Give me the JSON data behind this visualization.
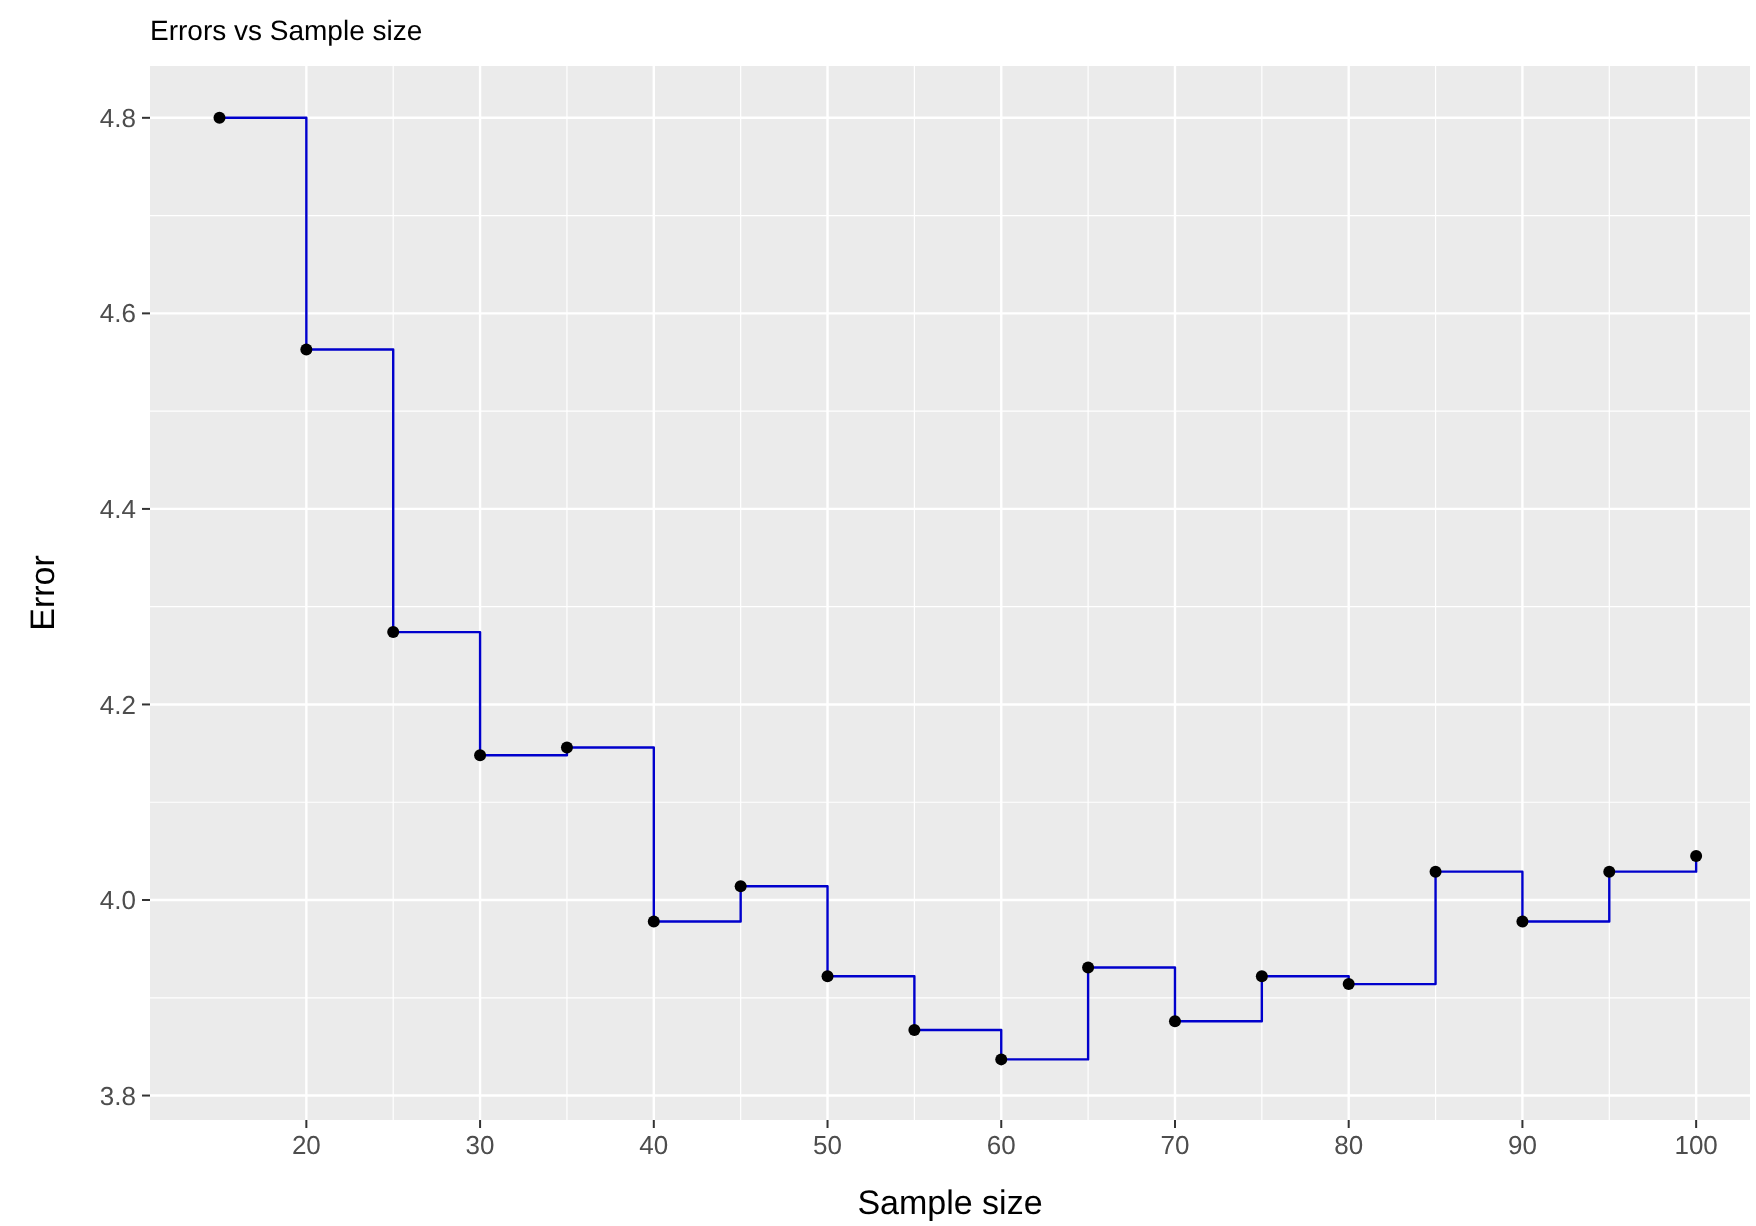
{
  "chart_data": {
    "type": "step",
    "title": "Errors vs Sample size",
    "xlabel": "Sample size",
    "ylabel": "Error",
    "x": [
      15,
      20,
      25,
      30,
      35,
      40,
      45,
      50,
      55,
      60,
      65,
      70,
      75,
      80,
      85,
      90,
      95,
      100
    ],
    "series": [
      {
        "color": "#0000cc",
        "values": [
          4.8,
          4.563,
          4.274,
          4.148,
          4.156,
          3.978,
          4.014,
          3.922,
          3.867,
          3.837,
          3.931,
          3.876,
          3.922,
          3.914,
          4.029,
          3.978,
          4.029,
          4.045
        ]
      }
    ],
    "xlim": [
      11,
      103.1
    ],
    "ylim": [
      3.775,
      4.853
    ],
    "xticks": [
      20,
      30,
      40,
      50,
      60,
      70,
      80,
      90,
      100
    ],
    "yticks": [
      {
        "value": 3.8,
        "label": "3.8"
      },
      {
        "value": 4.0,
        "label": "4.0"
      },
      {
        "value": 4.2,
        "label": "4.2"
      },
      {
        "value": 4.4,
        "label": "4.4"
      },
      {
        "value": 4.6,
        "label": "4.6"
      },
      {
        "value": 4.8,
        "label": "4.8"
      }
    ],
    "grid": true,
    "marker": "circle",
    "line_style": "solid"
  }
}
